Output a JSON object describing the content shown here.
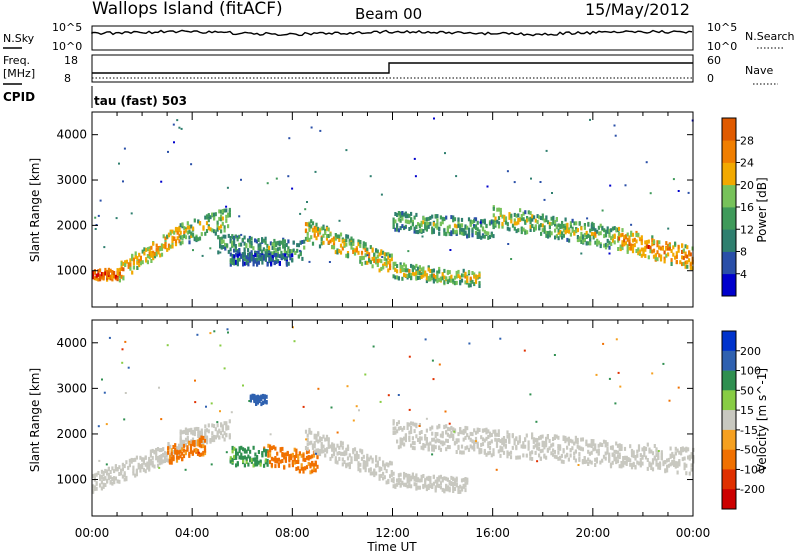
{
  "header": {
    "station": "Wallops Island (fitACF)",
    "beam": "Beam 00",
    "date": "15/May/2012"
  },
  "top_panels": {
    "nsky_label": "N.Sky",
    "nsky_tick_top": "10^5",
    "nsky_tick_bottom": "10^0",
    "nsearch_label": "N.Search",
    "nsearch_tick_top": "10^5",
    "nsearch_tick_bottom": "10^0",
    "freq_label": "Freq.",
    "freq_unit": "[MHz]",
    "freq_tick_top": "18",
    "freq_tick_bottom": "8",
    "nave_label": "Nave",
    "nave_tick_top": "60",
    "nave_tick_bottom": "0",
    "cpid_label": "CPID",
    "cpid_value": "tau (fast) 503"
  },
  "colors": {
    "power_scale": [
      "#0000cc",
      "#2a4fa8",
      "#2f7f6f",
      "#3f9a5a",
      "#77c25a",
      "#f2a900",
      "#f07e00",
      "#e05a00",
      "#d40000"
    ],
    "velocity_scale": [
      "#0033cc",
      "#2f61b0",
      "#2f8f50",
      "#88cc44",
      "#c8c8c0",
      "#f5a020",
      "#f07000",
      "#e03000",
      "#cc0000"
    ]
  },
  "chart_data": [
    {
      "type": "heatmap",
      "title": "Power",
      "xlabel": "",
      "ylabel": "Slant Range [km]",
      "x_tick_labels": [
        "00:00",
        "04:00",
        "08:00",
        "12:00",
        "16:00",
        "20:00",
        "00:00"
      ],
      "x_tick_hours": [
        0,
        4,
        8,
        12,
        16,
        20,
        24
      ],
      "xlim": [
        0,
        24
      ],
      "y_tick_labels": [
        "1000",
        "2000",
        "3000",
        "4000"
      ],
      "y_tick_values": [
        1000,
        2000,
        3000,
        4000
      ],
      "ylim": [
        200,
        4500
      ],
      "colorbar_label": "Power [dB]",
      "colorbar_tick_labels": [
        "4",
        "8",
        "12",
        "16",
        "20",
        "24",
        "28"
      ],
      "colorbar_range": [
        0,
        32
      ],
      "echo_bands": [
        {
          "t0": 0.0,
          "t1": 1.0,
          "r0": 900,
          "r1": 900,
          "width": 150,
          "value": 28
        },
        {
          "t0": 1.0,
          "t1": 3.5,
          "r0": 950,
          "r1": 1800,
          "width": 250,
          "value": 22
        },
        {
          "t0": 3.5,
          "t1": 5.5,
          "r0": 1800,
          "r1": 2150,
          "width": 300,
          "value": 18
        },
        {
          "t0": 5.0,
          "t1": 8.5,
          "r0": 1600,
          "r1": 1450,
          "width": 250,
          "value": 14
        },
        {
          "t0": 5.5,
          "t1": 8.0,
          "r0": 1250,
          "r1": 1250,
          "width": 150,
          "value": 10
        },
        {
          "t0": 8.5,
          "t1": 12.0,
          "r0": 1900,
          "r1": 1100,
          "width": 300,
          "value": 20
        },
        {
          "t0": 12.0,
          "t1": 16.0,
          "r0": 2100,
          "r1": 1900,
          "width": 250,
          "value": 15
        },
        {
          "t0": 12.0,
          "t1": 15.5,
          "r0": 1000,
          "r1": 800,
          "width": 200,
          "value": 18
        },
        {
          "t0": 16.0,
          "t1": 21.0,
          "r0": 2200,
          "r1": 1700,
          "width": 300,
          "value": 17
        },
        {
          "t0": 21.0,
          "t1": 24.0,
          "r0": 1700,
          "r1": 1250,
          "width": 300,
          "value": 24
        }
      ]
    },
    {
      "type": "heatmap",
      "title": "Velocity",
      "xlabel": "Time UT",
      "ylabel": "Slant Range [km]",
      "x_tick_labels": [
        "00:00",
        "04:00",
        "08:00",
        "12:00",
        "16:00",
        "20:00",
        "00:00"
      ],
      "x_tick_hours": [
        0,
        4,
        8,
        12,
        16,
        20,
        24
      ],
      "xlim": [
        0,
        24
      ],
      "y_tick_labels": [
        "1000",
        "2000",
        "3000",
        "4000"
      ],
      "y_tick_values": [
        1000,
        2000,
        3000,
        4000
      ],
      "ylim": [
        200,
        4500
      ],
      "colorbar_label": "Velocity [m s^-1]",
      "colorbar_tick_labels": [
        "200",
        "100",
        "50",
        "15",
        "-15",
        "-50",
        "-100",
        "-200"
      ],
      "echo_bands": [
        {
          "t0": 0.0,
          "t1": 3.5,
          "r0": 900,
          "r1": 1700,
          "width": 250,
          "value": 0
        },
        {
          "t0": 3.5,
          "t1": 5.5,
          "r0": 1900,
          "r1": 2100,
          "width": 250,
          "value": 0
        },
        {
          "t0": 3.0,
          "t1": 4.5,
          "r0": 1550,
          "r1": 1750,
          "width": 250,
          "value": -60
        },
        {
          "t0": 5.5,
          "t1": 7.0,
          "r0": 1500,
          "r1": 1500,
          "width": 250,
          "value": 60
        },
        {
          "t0": 7.0,
          "t1": 9.0,
          "r0": 1500,
          "r1": 1350,
          "width": 300,
          "value": -60
        },
        {
          "t0": 8.5,
          "t1": 12.0,
          "r0": 1900,
          "r1": 1100,
          "width": 300,
          "value": 0
        },
        {
          "t0": 12.0,
          "t1": 24.0,
          "r0": 2000,
          "r1": 1400,
          "width": 350,
          "value": 0
        },
        {
          "t0": 12.0,
          "t1": 15.0,
          "r0": 1000,
          "r1": 850,
          "width": 200,
          "value": 0
        },
        {
          "t0": 6.3,
          "t1": 7.0,
          "r0": 2750,
          "r1": 2750,
          "width": 120,
          "value": 150
        }
      ]
    }
  ]
}
